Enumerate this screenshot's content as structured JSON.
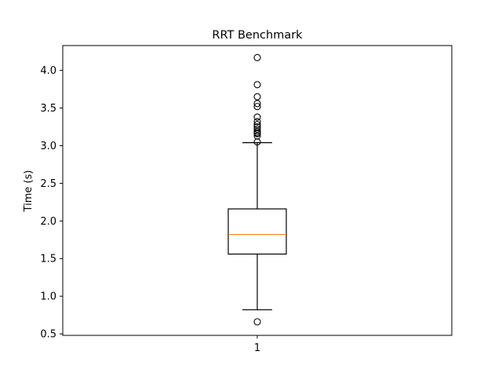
{
  "chart_data": {
    "type": "box",
    "title": "RRT Benchmark",
    "xlabel": "",
    "ylabel": "Time (s)",
    "categories": [
      "1"
    ],
    "ylim": [
      0.48,
      4.33
    ],
    "yticks": [
      0.5,
      1.0,
      1.5,
      2.0,
      2.5,
      3.0,
      3.5,
      4.0
    ],
    "ytick_labels": [
      "0.5",
      "1.0",
      "1.5",
      "2.0",
      "2.5",
      "3.0",
      "3.5",
      "4.0"
    ],
    "grid": false,
    "box": {
      "whisker_low": 0.82,
      "q1": 1.56,
      "median": 1.82,
      "q3": 2.16,
      "whisker_high": 3.04
    },
    "outliers": [
      0.66,
      3.05,
      3.13,
      3.16,
      3.17,
      3.19,
      3.22,
      3.25,
      3.28,
      3.32,
      3.38,
      3.52,
      3.56,
      3.65,
      3.81,
      4.17
    ],
    "colors": {
      "median": "#ff7f0e",
      "box": "#000000"
    }
  }
}
